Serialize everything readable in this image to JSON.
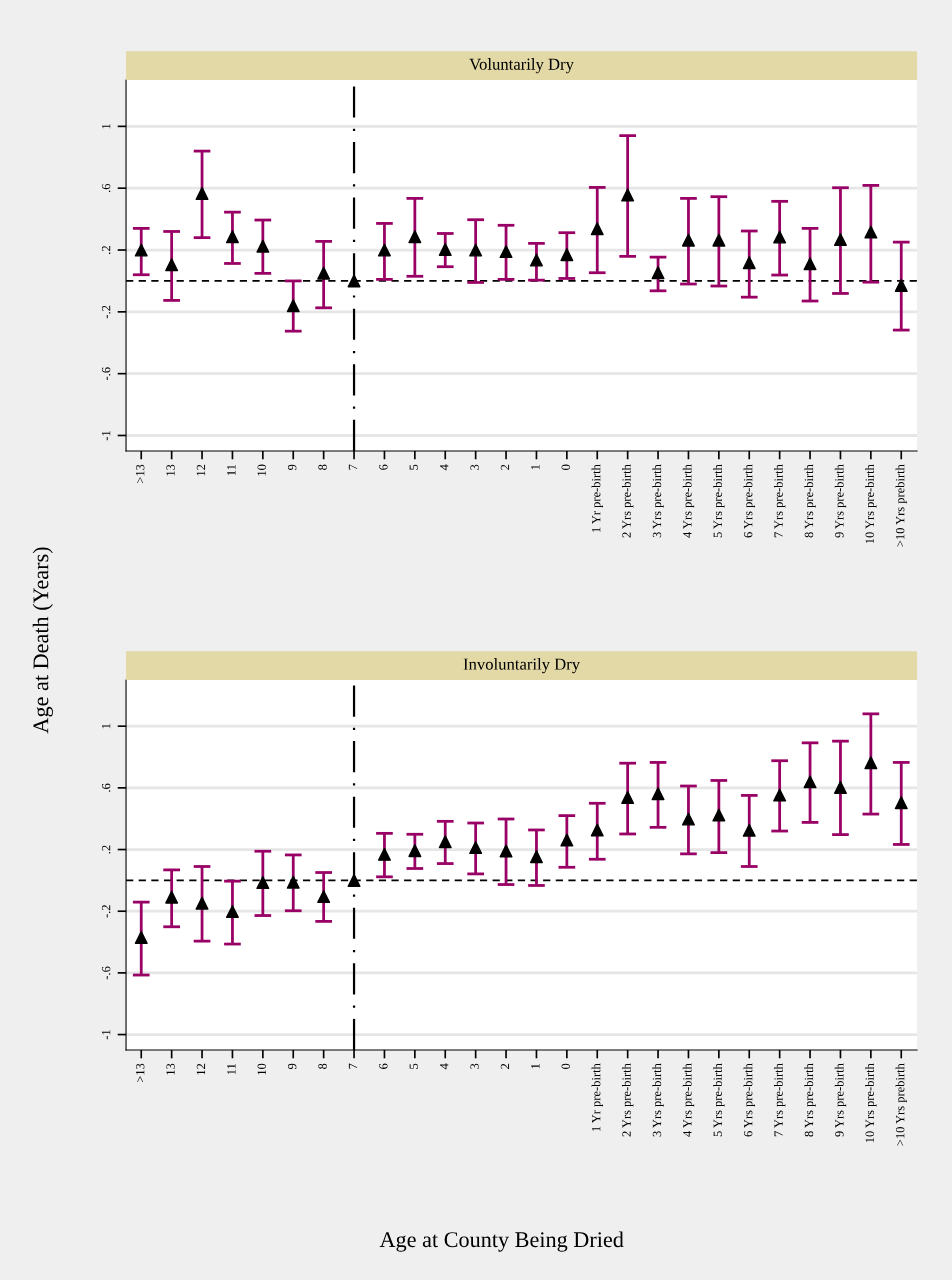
{
  "chart_data": [
    {
      "type": "scatter",
      "title": "Voluntarily Dry",
      "ylabel": "Age at Death (Years)",
      "categories": [
        ">13",
        "13",
        "12",
        "11",
        "10",
        "9",
        "8",
        "7",
        "6",
        "5",
        "4",
        "3",
        "2",
        "1",
        "0",
        "1 Yr pre-birth",
        "2 Yrs pre-birth",
        "3 Yrs pre-birth",
        "4 Yrs pre-birth",
        "5 Yrs pre-birth",
        "6 Yrs pre-birth",
        "7 Yrs pre-birth",
        "8 Yrs pre-birth",
        "9 Yrs pre-birth",
        "10 Yrs pre-birth",
        ">10 Yrs prebirth"
      ],
      "series": [
        {
          "color": "#000000",
          "values": [
            0.2,
            0.105,
            0.566,
            0.286,
            0.225,
            -0.16,
            0.05,
            0,
            0.2,
            0.286,
            0.204,
            0.2,
            0.19,
            0.135,
            0.17,
            0.338,
            0.556,
            0.053,
            0.264,
            0.264,
            0.118,
            0.284,
            0.111,
            0.268,
            0.316,
            -0.029
          ],
          "errors": [
            [
              0.04,
              0.34
            ],
            [
              -0.126,
              0.32
            ],
            [
              0.28,
              0.84
            ],
            [
              0.113,
              0.445
            ],
            [
              0.049,
              0.394
            ],
            [
              -0.325,
              0.0
            ],
            [
              -0.174,
              0.256
            ],
            null,
            [
              0.01,
              0.372
            ],
            [
              0.03,
              0.534
            ],
            [
              0.092,
              0.307
            ],
            [
              -0.01,
              0.396
            ],
            [
              0.01,
              0.36
            ],
            [
              0.005,
              0.243
            ],
            [
              0.016,
              0.312
            ],
            [
              0.053,
              0.605
            ],
            [
              0.159,
              0.94
            ],
            [
              -0.064,
              0.154
            ],
            [
              -0.02,
              0.534
            ],
            [
              -0.033,
              0.545
            ],
            [
              -0.105,
              0.323
            ],
            [
              0.038,
              0.515
            ],
            [
              -0.13,
              0.34
            ],
            [
              -0.081,
              0.603
            ],
            [
              -0.008,
              0.618
            ],
            [
              -0.318,
              0.251
            ]
          ]
        }
      ],
      "ylim": [
        -1.1,
        1.3
      ],
      "yticks": [
        -1,
        {
          "value": -0.6,
          "label": "-.6"
        },
        {
          "value": -0.2,
          "label": "-.2"
        },
        {
          "value": 0.2,
          "label": ".2"
        },
        {
          "value": 0.6,
          "label": ".6"
        },
        1
      ],
      "ref_lines": [
        {
          "axis": "y",
          "value": 0,
          "color": "#000000",
          "line_style": "dashed"
        },
        {
          "axis": "x",
          "value": "7",
          "color": "#000000",
          "line_style": "dashdot"
        }
      ],
      "grid": "y",
      "marker": "triangle",
      "legend": false
    },
    {
      "type": "scatter",
      "title": "Involuntarily Dry",
      "xlabel": "Age at County Being Dried",
      "categories": [
        ">13",
        "13",
        "12",
        "11",
        "10",
        "9",
        "8",
        "7",
        "6",
        "5",
        "4",
        "3",
        "2",
        "1",
        "0",
        "1 Yr pre-birth",
        "2 Yrs pre-birth",
        "3 Yrs pre-birth",
        "4 Yrs pre-birth",
        "5 Yrs pre-birth",
        "6 Yrs pre-birth",
        "7 Yrs pre-birth",
        "8 Yrs pre-birth",
        "9 Yrs pre-birth",
        "10 Yrs pre-birth",
        ">10 Yrs prebirth"
      ],
      "series": [
        {
          "color": "#000000",
          "values": [
            -0.37,
            -0.109,
            -0.148,
            -0.202,
            -0.014,
            -0.012,
            -0.105,
            0,
            0.169,
            0.193,
            0.251,
            0.213,
            0.191,
            0.154,
            0.262,
            0.327,
            0.538,
            0.562,
            0.398,
            0.424,
            0.325,
            0.553,
            0.639,
            0.603,
            0.763,
            0.504
          ],
          "errors": [
            [
              -0.614,
              -0.141
            ],
            [
              -0.301,
              0.068
            ],
            [
              -0.394,
              0.09
            ],
            [
              -0.413,
              -0.005
            ],
            [
              -0.228,
              0.189
            ],
            [
              -0.197,
              0.165
            ],
            [
              -0.266,
              0.051
            ],
            null,
            [
              0.023,
              0.305
            ],
            [
              0.077,
              0.299
            ],
            [
              0.109,
              0.383
            ],
            [
              0.042,
              0.372
            ],
            [
              -0.027,
              0.398
            ],
            [
              -0.033,
              0.327
            ],
            [
              0.085,
              0.42
            ],
            [
              0.137,
              0.5
            ],
            [
              0.301,
              0.76
            ],
            [
              0.344,
              0.765
            ],
            [
              0.172,
              0.612
            ],
            [
              0.18,
              0.648
            ],
            [
              0.09,
              0.551
            ],
            [
              0.32,
              0.776
            ],
            [
              0.376,
              0.892
            ],
            [
              0.297,
              0.903
            ],
            [
              0.43,
              1.08
            ],
            [
              0.233,
              0.765
            ]
          ]
        }
      ],
      "ylim": [
        -1.1,
        1.3
      ],
      "yticks": [
        -1,
        {
          "value": -0.6,
          "label": "-.6"
        },
        {
          "value": -0.2,
          "label": "-.2"
        },
        {
          "value": 0.2,
          "label": ".2"
        },
        {
          "value": 0.6,
          "label": ".6"
        },
        1
      ],
      "ref_lines": [
        {
          "axis": "y",
          "value": 0,
          "color": "#000000",
          "line_style": "dashed"
        },
        {
          "axis": "x",
          "value": "7",
          "color": "#000000",
          "line_style": "dashdot"
        }
      ],
      "grid": "y",
      "marker": "triangle",
      "legend": false
    }
  ]
}
